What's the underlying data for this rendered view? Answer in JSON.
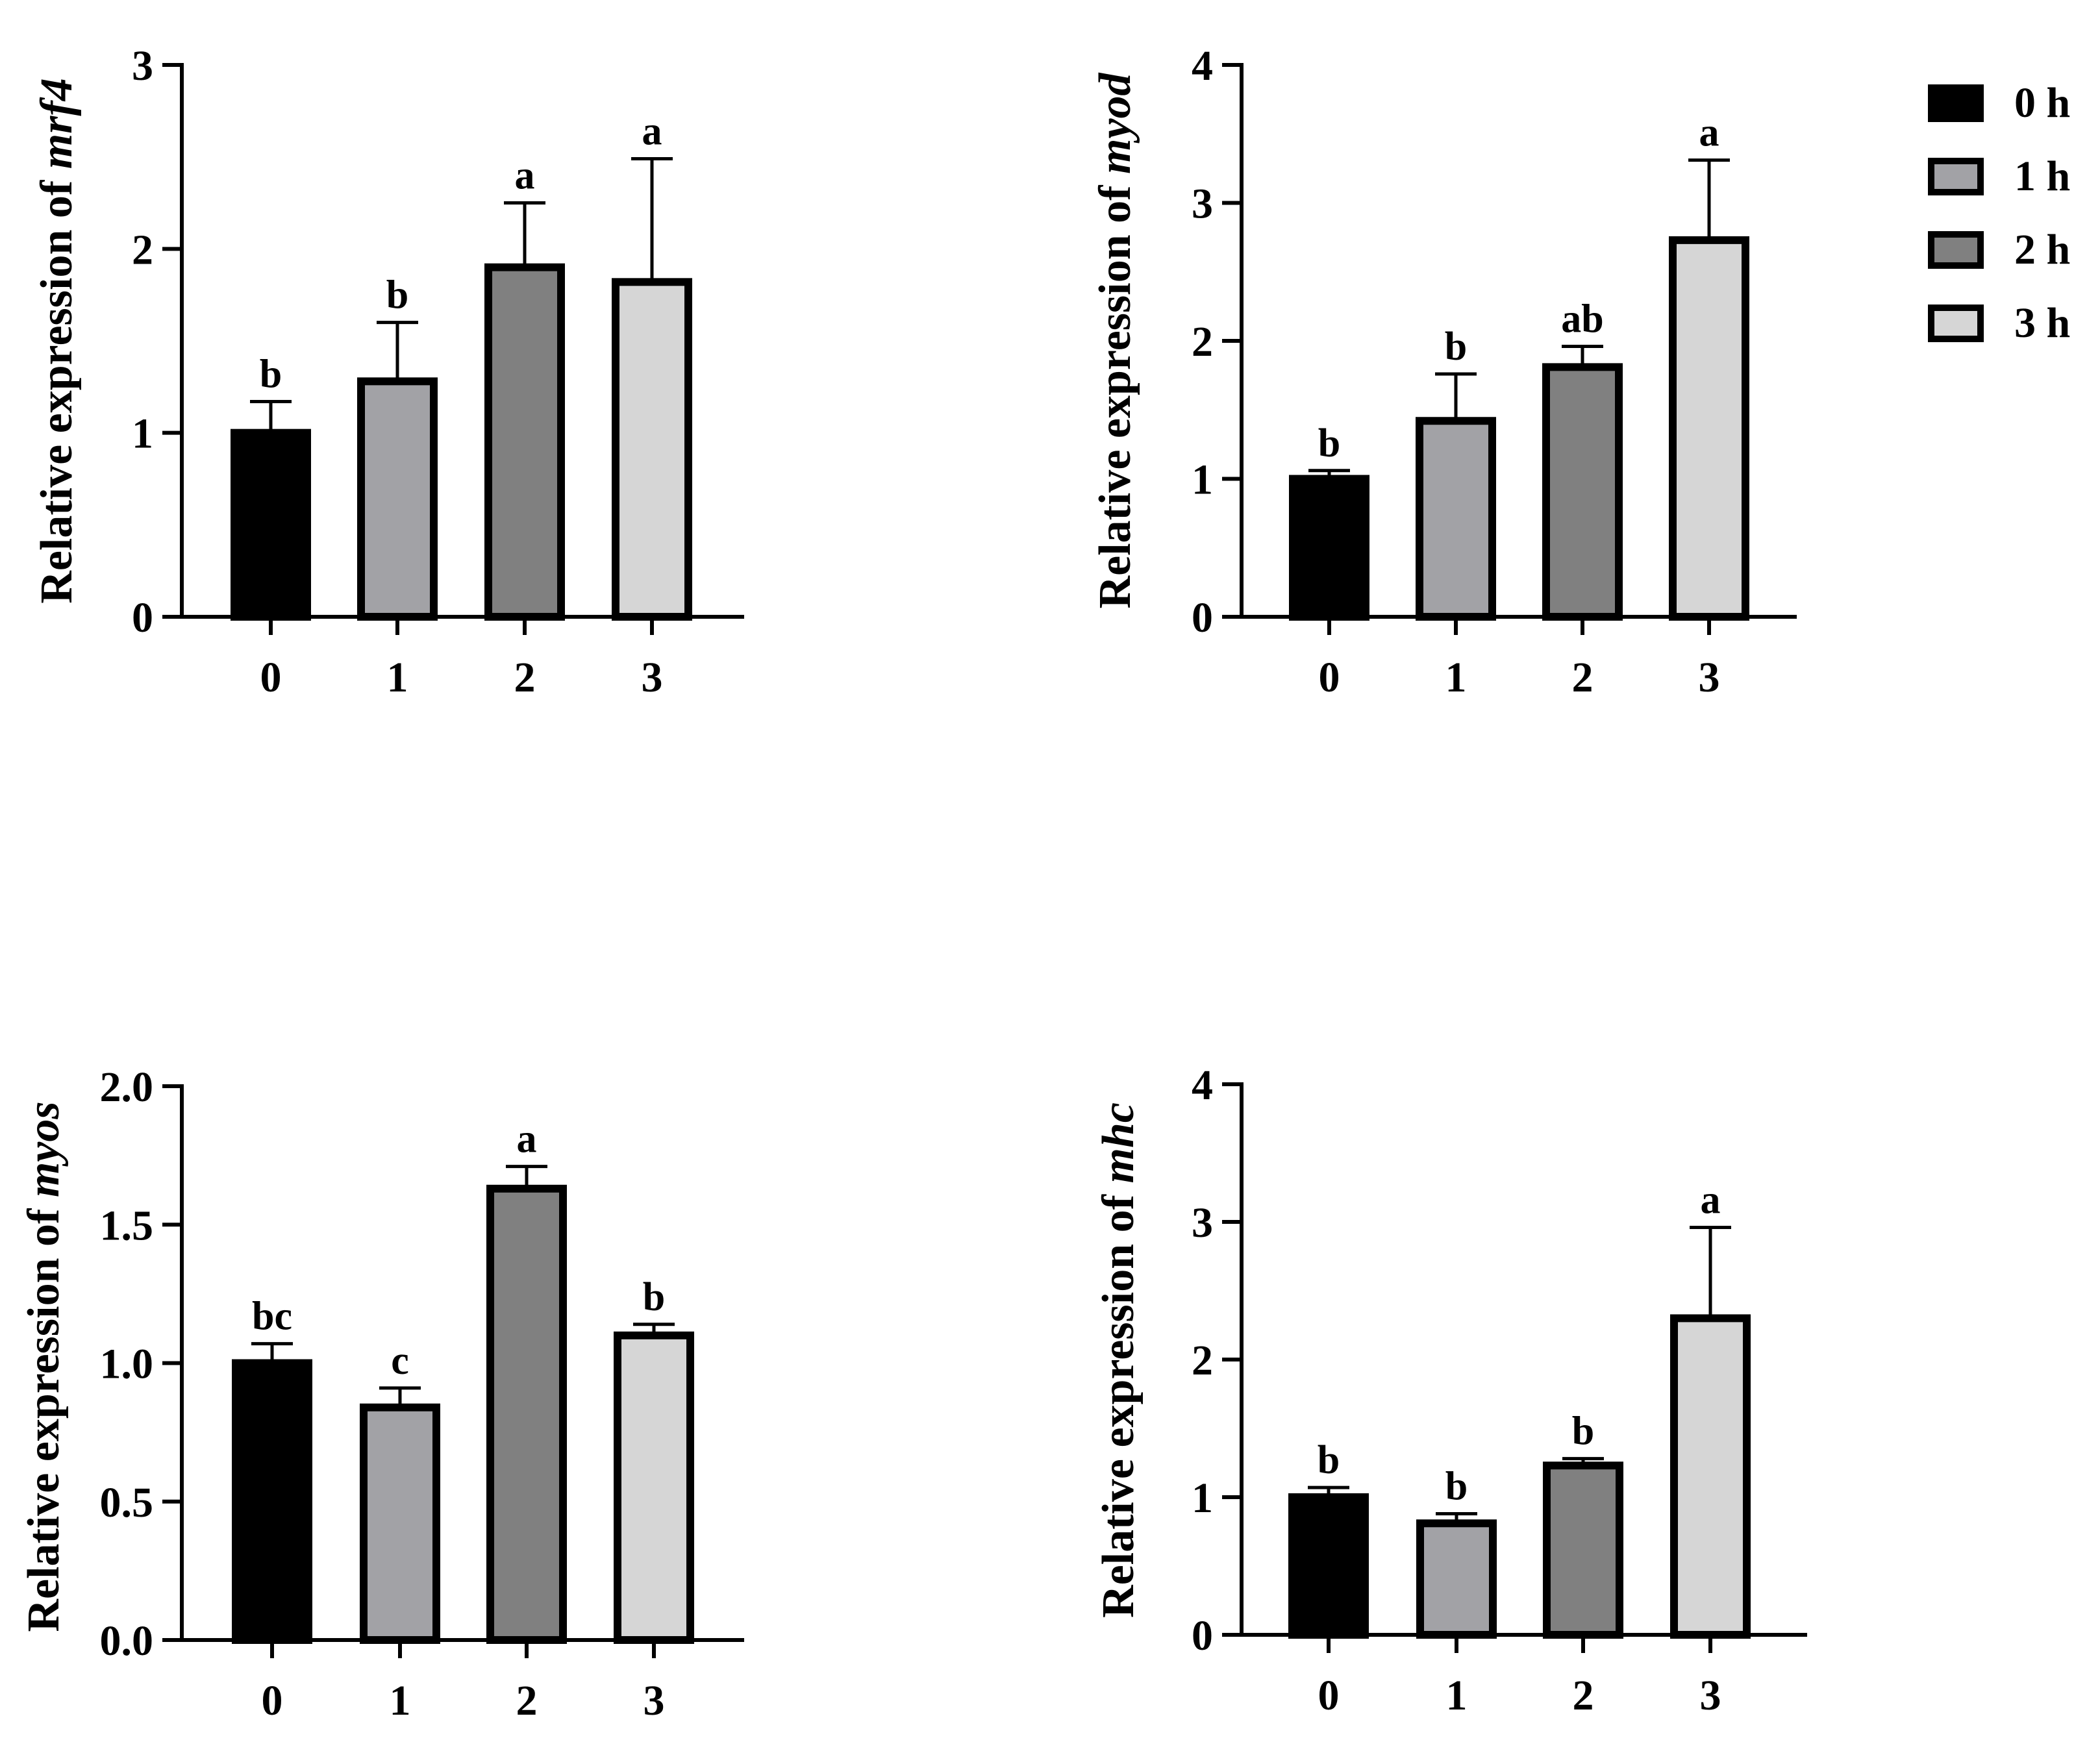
{
  "legend": {
    "entries": [
      {
        "label": "0 h",
        "color": "#000000"
      },
      {
        "label": "1 h",
        "color": "#a2a2a6"
      },
      {
        "label": "2 h",
        "color": "#808080"
      },
      {
        "label": "3 h",
        "color": "#d6d6d6"
      }
    ]
  },
  "chart_data": [
    {
      "type": "bar",
      "panel": "top-left",
      "gene": "mrf4",
      "ylabel_prefix": "Relative expression of ",
      "ylabel_gene": "mrf4",
      "xlabel": "",
      "categories": [
        "0",
        "1",
        "2",
        "3"
      ],
      "values": [
        1.0,
        1.28,
        1.9,
        1.82
      ],
      "errors": [
        0.17,
        0.32,
        0.35,
        0.67
      ],
      "significance": [
        "b",
        "b",
        "a",
        "a"
      ],
      "ylim": [
        0,
        3
      ],
      "yticks": [
        0,
        1,
        2,
        3
      ],
      "ytick_labels": [
        "0",
        "1",
        "2",
        "3"
      ]
    },
    {
      "type": "bar",
      "panel": "top-right",
      "gene": "myod",
      "ylabel_prefix": "Relative expression of ",
      "ylabel_gene": "myod",
      "xlabel": "",
      "categories": [
        "0",
        "1",
        "2",
        "3"
      ],
      "values": [
        1.0,
        1.42,
        1.81,
        2.73
      ],
      "errors": [
        0.06,
        0.34,
        0.15,
        0.58
      ],
      "significance": [
        "b",
        "b",
        "ab",
        "a"
      ],
      "ylim": [
        0,
        4
      ],
      "yticks": [
        0,
        1,
        2,
        3,
        4
      ],
      "ytick_labels": [
        "0",
        "1",
        "2",
        "3",
        "4"
      ]
    },
    {
      "type": "bar",
      "panel": "bottom-left",
      "gene": "myos",
      "ylabel_prefix": "Relative expression of ",
      "ylabel_gene": "myos",
      "xlabel": "",
      "categories": [
        "0",
        "1",
        "2",
        "3"
      ],
      "values": [
        1.0,
        0.84,
        1.63,
        1.1
      ],
      "errors": [
        0.07,
        0.07,
        0.08,
        0.04
      ],
      "significance": [
        "bc",
        "c",
        "a",
        "b"
      ],
      "ylim": [
        0,
        2
      ],
      "yticks": [
        0,
        0.5,
        1.0,
        1.5,
        2.0
      ],
      "ytick_labels": [
        "0.0",
        "0.5",
        "1.0",
        "1.5",
        "2.0"
      ]
    },
    {
      "type": "bar",
      "panel": "bottom-right",
      "gene": "mhc",
      "ylabel_prefix": "Relative expression of ",
      "ylabel_gene": "mhc",
      "xlabel": "",
      "categories": [
        "0",
        "1",
        "2",
        "3"
      ],
      "values": [
        1.0,
        0.81,
        1.23,
        2.3
      ],
      "errors": [
        0.07,
        0.07,
        0.05,
        0.66
      ],
      "significance": [
        "b",
        "b",
        "b",
        "a"
      ],
      "ylim": [
        0,
        4
      ],
      "yticks": [
        0,
        1,
        2,
        3,
        4
      ],
      "ytick_labels": [
        "0",
        "1",
        "2",
        "3",
        "4"
      ]
    }
  ]
}
